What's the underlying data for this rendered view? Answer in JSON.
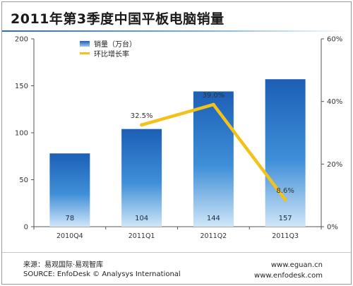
{
  "title": "2011年第3季度中国平板电脑销量",
  "source_cn": "来源：易观国际·易观智库",
  "source_en": "SOURCE: EnfoDesk © Analysys International",
  "website_1": "www.eguan.cn",
  "website_2": "www.enfodesk.com",
  "chart_data": {
    "type": "bar",
    "title": "2011年第3季度中国平板电脑销量",
    "categories": [
      "2010Q4",
      "2011Q1",
      "2011Q2",
      "2011Q3"
    ],
    "series": [
      {
        "name": "销量（万台）",
        "type": "bar",
        "axis": "left",
        "values": [
          78,
          104,
          144,
          157
        ],
        "value_labels": [
          "78",
          "104",
          "144",
          "157"
        ],
        "color": "#2f78c8"
      },
      {
        "name": "环比增长率",
        "type": "line",
        "axis": "right",
        "x": [
          "2011Q1",
          "2011Q2",
          "2011Q3"
        ],
        "values": [
          32.5,
          39.0,
          8.6
        ],
        "value_labels": [
          "32.5%",
          "39.0%",
          "8.6%"
        ],
        "color": "#f2c21a"
      }
    ],
    "y_left": {
      "min": 0,
      "max": 200,
      "ticks": [
        "0",
        "50",
        "100",
        "150",
        "200"
      ]
    },
    "y_right": {
      "min": 0,
      "max": 60,
      "unit": "%",
      "ticks": [
        "0%",
        "20%",
        "40%",
        "60%"
      ]
    },
    "grid": false,
    "legend": "top-left"
  }
}
